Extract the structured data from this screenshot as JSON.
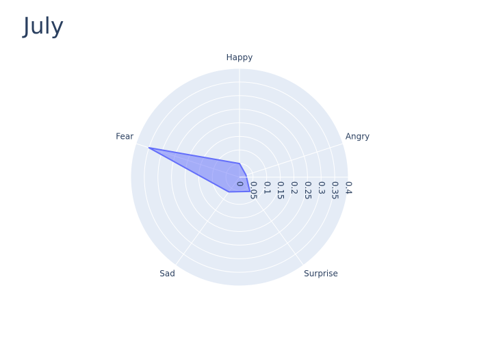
{
  "chart_data": {
    "type": "radar",
    "title": "July",
    "categories": [
      "Happy",
      "Angry",
      "Surprise",
      "Sad",
      "Fear"
    ],
    "values": [
      0.05,
      0.025,
      0.065,
      0.067,
      0.35
    ],
    "radial_range": [
      0,
      0.4
    ],
    "radial_ticks": [
      "0",
      "0.05",
      "0.1",
      "0.15",
      "0.2",
      "0.25",
      "0.3",
      "0.35",
      "0.4"
    ],
    "grid": true,
    "legend": "none",
    "colors": {
      "fill": "#636efa",
      "line": "#636efa",
      "background": "#e5ecf6",
      "grid": "#ffffff",
      "text": "#2a3f5f"
    }
  }
}
